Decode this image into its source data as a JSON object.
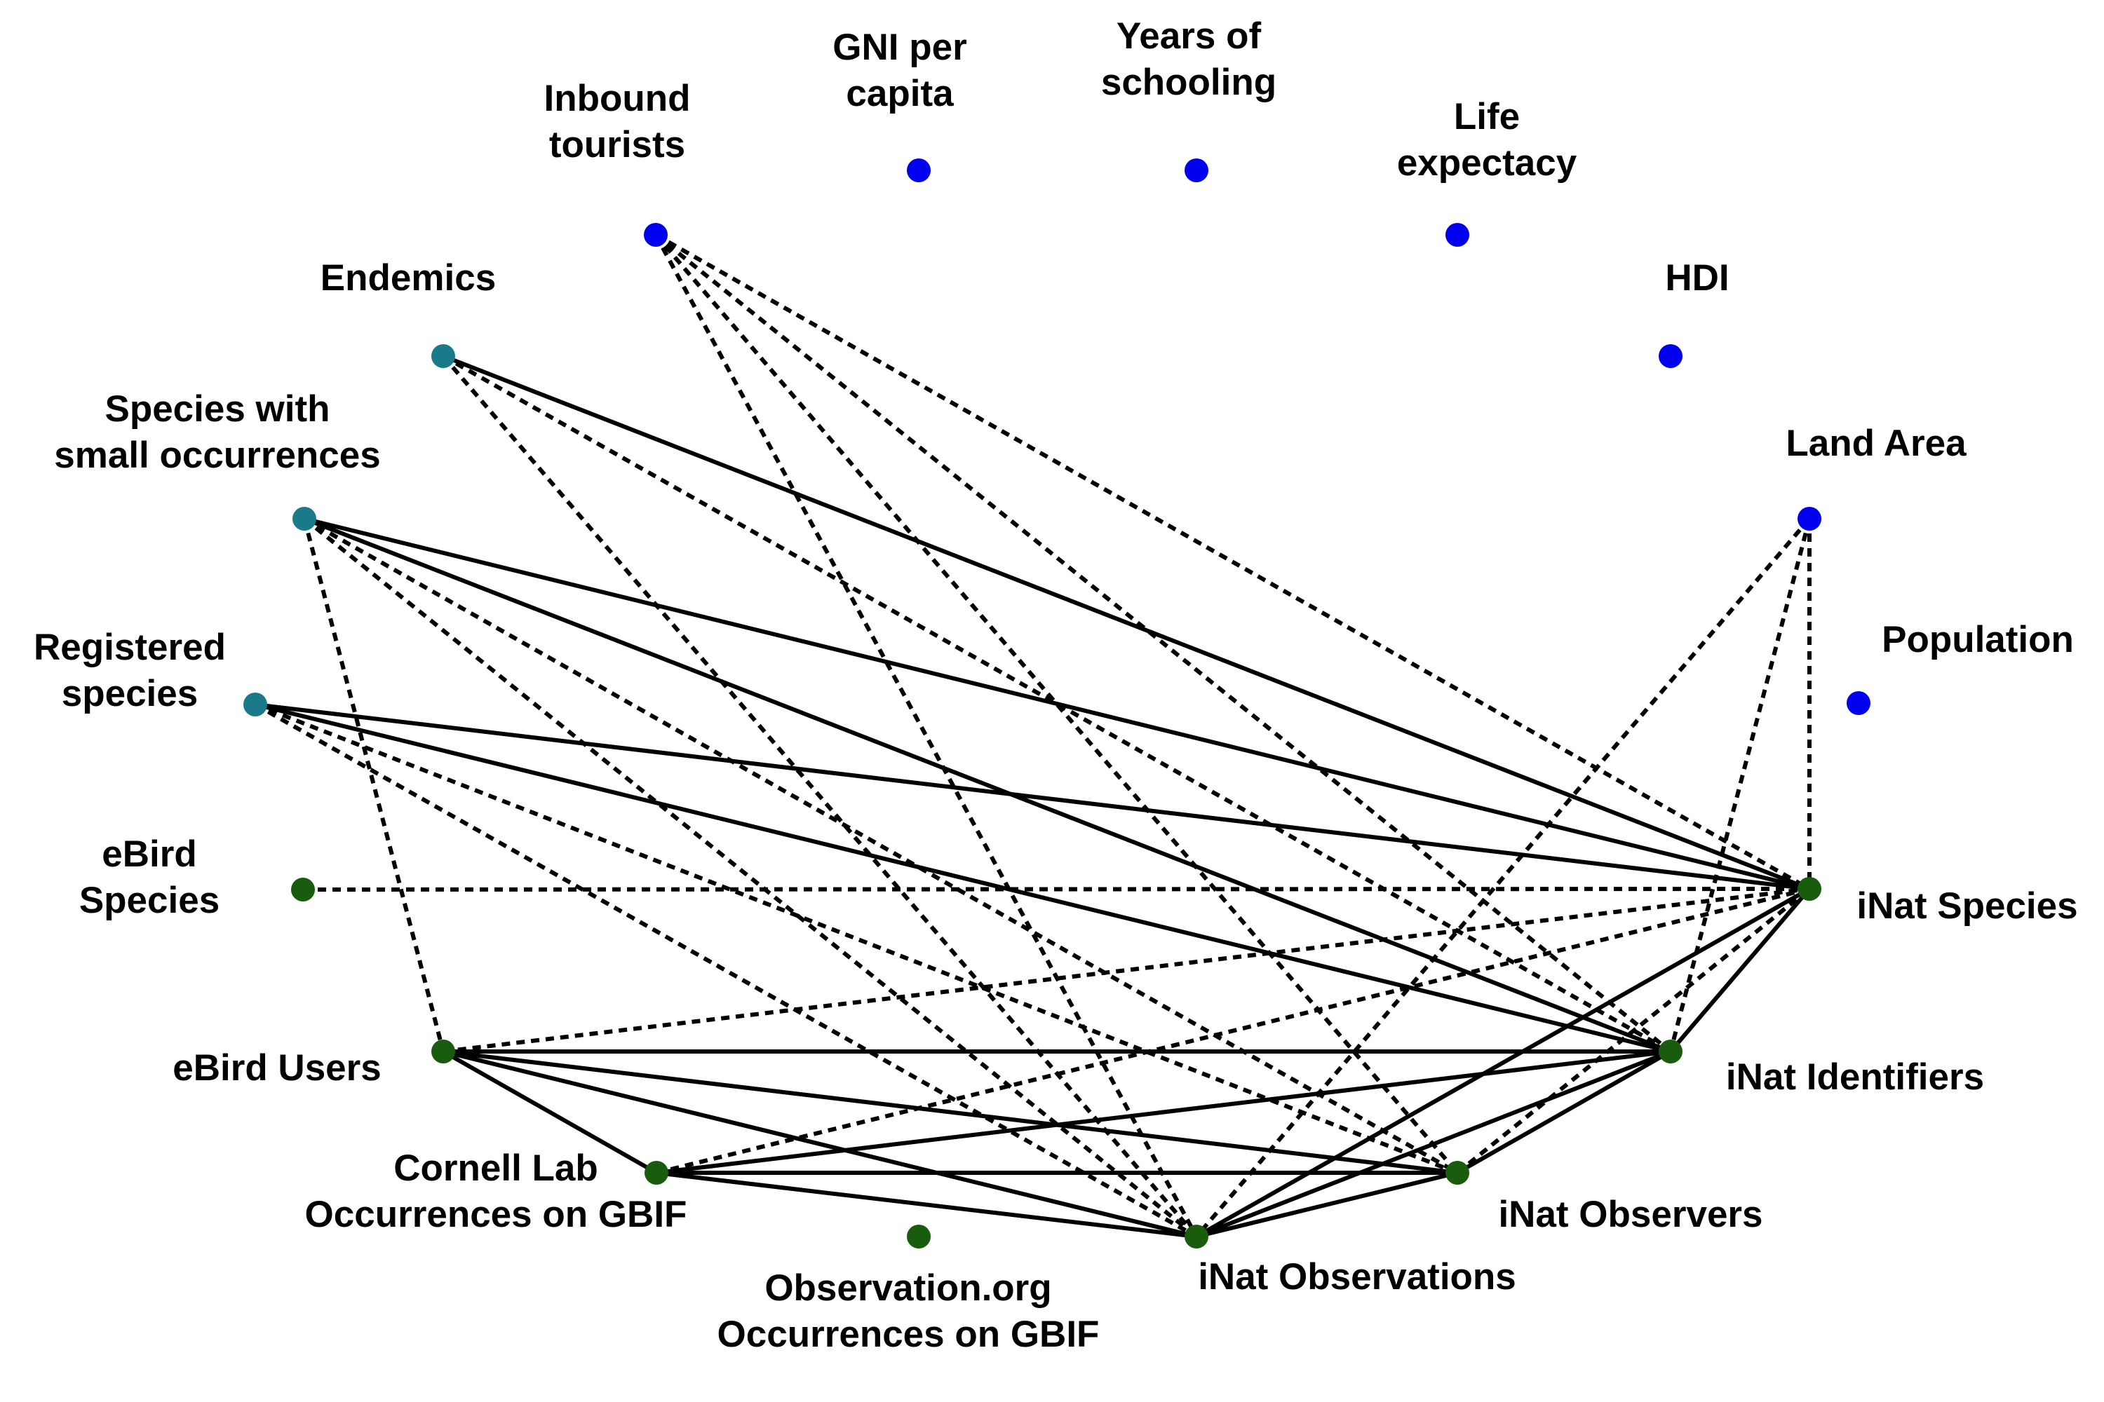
{
  "colors": {
    "blue": "#0000ee",
    "teal": "#1a7a8a",
    "green": "#1a5c0d",
    "edge": "#000000",
    "background": "#ffffff"
  },
  "nodes": [
    {
      "id": "inbound_tourists",
      "label": [
        "Inbound",
        "tourists"
      ],
      "group": "blue"
    },
    {
      "id": "gni",
      "label": [
        "GNI per",
        "capita"
      ],
      "group": "blue"
    },
    {
      "id": "schooling",
      "label": [
        "Years of",
        "schooling"
      ],
      "group": "blue"
    },
    {
      "id": "life",
      "label": [
        "Life",
        "expectacy"
      ],
      "group": "blue"
    },
    {
      "id": "hdi",
      "label": [
        "HDI"
      ],
      "group": "blue"
    },
    {
      "id": "land",
      "label": [
        "Land Area"
      ],
      "group": "blue"
    },
    {
      "id": "population",
      "label": [
        "Population"
      ],
      "group": "blue"
    },
    {
      "id": "endemics",
      "label": [
        "Endemics"
      ],
      "group": "teal"
    },
    {
      "id": "small_occ",
      "label": [
        "Species with",
        "small occurrences"
      ],
      "group": "teal"
    },
    {
      "id": "registered",
      "label": [
        "Registered",
        "species"
      ],
      "group": "teal"
    },
    {
      "id": "ebird_species",
      "label": [
        "eBird",
        "Species"
      ],
      "group": "green"
    },
    {
      "id": "ebird_users",
      "label": [
        "eBird Users"
      ],
      "group": "green"
    },
    {
      "id": "cornell",
      "label": [
        "Cornell Lab",
        "Occurrences on GBIF"
      ],
      "group": "green"
    },
    {
      "id": "observation_org",
      "label": [
        "Observation.org",
        "Occurrences on GBIF"
      ],
      "group": "green"
    },
    {
      "id": "inat_observations",
      "label": [
        "iNat Observations"
      ],
      "group": "green"
    },
    {
      "id": "inat_observers",
      "label": [
        "iNat Observers"
      ],
      "group": "green"
    },
    {
      "id": "inat_identifiers",
      "label": [
        "iNat Identifiers"
      ],
      "group": "green"
    },
    {
      "id": "inat_species",
      "label": [
        "iNat Species"
      ],
      "group": "green"
    }
  ],
  "edges": [
    {
      "from": "endemics",
      "to": "inat_species",
      "style": "solid"
    },
    {
      "from": "small_occ",
      "to": "inat_species",
      "style": "solid"
    },
    {
      "from": "small_occ",
      "to": "inat_identifiers",
      "style": "solid"
    },
    {
      "from": "registered",
      "to": "inat_species",
      "style": "solid"
    },
    {
      "from": "registered",
      "to": "inat_identifiers",
      "style": "solid"
    },
    {
      "from": "ebird_users",
      "to": "inat_identifiers",
      "style": "solid"
    },
    {
      "from": "ebird_users",
      "to": "cornell",
      "style": "solid"
    },
    {
      "from": "ebird_users",
      "to": "inat_observations",
      "style": "solid"
    },
    {
      "from": "ebird_users",
      "to": "inat_observers",
      "style": "solid"
    },
    {
      "from": "cornell",
      "to": "inat_identifiers",
      "style": "solid"
    },
    {
      "from": "cornell",
      "to": "inat_observers",
      "style": "solid"
    },
    {
      "from": "cornell",
      "to": "inat_observations",
      "style": "solid"
    },
    {
      "from": "inat_observations",
      "to": "inat_observers",
      "style": "solid"
    },
    {
      "from": "inat_observations",
      "to": "inat_identifiers",
      "style": "solid"
    },
    {
      "from": "inat_observations",
      "to": "inat_species",
      "style": "solid"
    },
    {
      "from": "inat_observers",
      "to": "inat_identifiers",
      "style": "solid"
    },
    {
      "from": "inat_identifiers",
      "to": "inat_species",
      "style": "solid"
    },
    {
      "from": "inbound_tourists",
      "to": "inat_species",
      "style": "dashed"
    },
    {
      "from": "inbound_tourists",
      "to": "inat_identifiers",
      "style": "dashed"
    },
    {
      "from": "inbound_tourists",
      "to": "inat_observers",
      "style": "dashed"
    },
    {
      "from": "inbound_tourists",
      "to": "inat_observations",
      "style": "dashed"
    },
    {
      "from": "endemics",
      "to": "inat_identifiers",
      "style": "dashed"
    },
    {
      "from": "endemics",
      "to": "inat_observations",
      "style": "dashed"
    },
    {
      "from": "small_occ",
      "to": "ebird_users",
      "style": "dashed"
    },
    {
      "from": "small_occ",
      "to": "inat_observers",
      "style": "dashed"
    },
    {
      "from": "small_occ",
      "to": "inat_observations",
      "style": "dashed"
    },
    {
      "from": "registered",
      "to": "inat_observers",
      "style": "dashed"
    },
    {
      "from": "registered",
      "to": "inat_observations",
      "style": "dashed"
    },
    {
      "from": "ebird_species",
      "to": "inat_species",
      "style": "dashed"
    },
    {
      "from": "ebird_users",
      "to": "inat_species",
      "style": "dashed"
    },
    {
      "from": "cornell",
      "to": "inat_species",
      "style": "dashed"
    },
    {
      "from": "inat_observers",
      "to": "inat_species",
      "style": "dashed"
    },
    {
      "from": "land",
      "to": "inat_species",
      "style": "dashed"
    },
    {
      "from": "land",
      "to": "inat_identifiers",
      "style": "dashed"
    },
    {
      "from": "land",
      "to": "inat_observations",
      "style": "dashed"
    }
  ]
}
